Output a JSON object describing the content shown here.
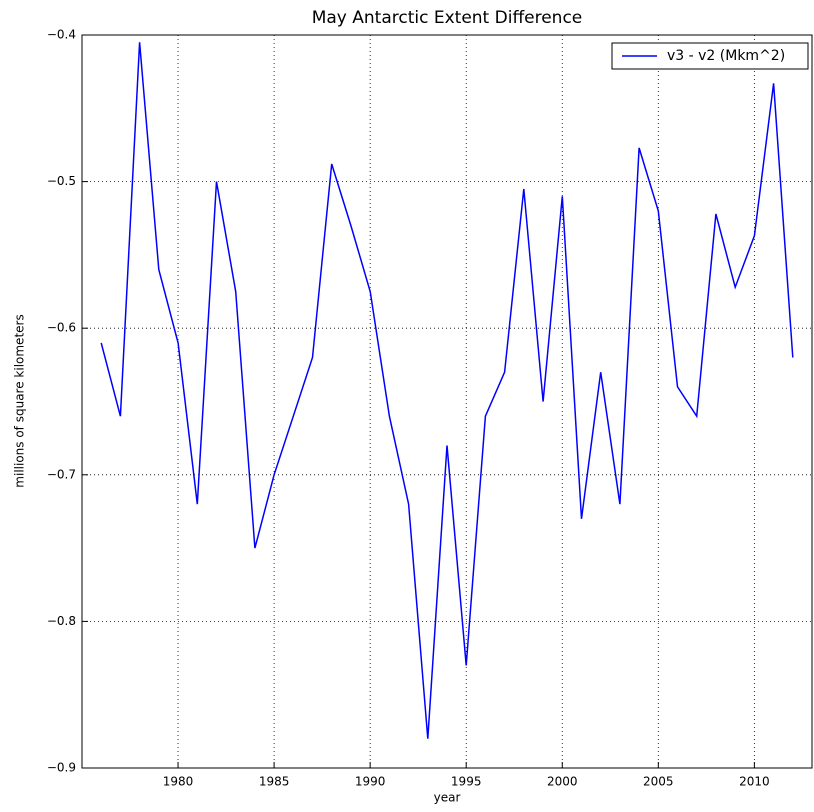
{
  "chart_data": {
    "type": "line",
    "title": "May Antarctic Extent Difference",
    "xlabel": "year",
    "ylabel": "millions of square kilometers",
    "x": [
      1976,
      1977,
      1978,
      1979,
      1980,
      1981,
      1982,
      1983,
      1984,
      1985,
      1986,
      1987,
      1988,
      1989,
      1990,
      1991,
      1992,
      1993,
      1994,
      1995,
      1996,
      1997,
      1998,
      1999,
      2000,
      2001,
      2002,
      2003,
      2004,
      2005,
      2006,
      2007,
      2008,
      2009,
      2010,
      2011,
      2012
    ],
    "series": [
      {
        "name": "v3 - v2 (Mkm^2)",
        "color": "#0000ff",
        "values": [
          -0.61,
          -0.66,
          -0.405,
          -0.56,
          -0.61,
          -0.72,
          -0.5,
          -0.575,
          -0.75,
          -0.7,
          -0.66,
          -0.62,
          -0.488,
          -0.53,
          -0.575,
          -0.66,
          -0.72,
          -0.88,
          -0.68,
          -0.83,
          -0.66,
          -0.63,
          -0.505,
          -0.65,
          -0.51,
          -0.73,
          -0.63,
          -0.72,
          -0.477,
          -0.52,
          -0.64,
          -0.66,
          -0.522,
          -0.572,
          -0.537,
          -0.433,
          -0.62
        ]
      }
    ],
    "xlim": [
      1975,
      2013
    ],
    "xticks": [
      1980,
      1985,
      1990,
      1995,
      2000,
      2005,
      2010
    ],
    "ylim": [
      -0.9,
      -0.4
    ],
    "yticks": [
      {
        "value": -0.9,
        "label": "−0.9"
      },
      {
        "value": -0.8,
        "label": "−0.8"
      },
      {
        "value": -0.7,
        "label": "−0.7"
      },
      {
        "value": -0.6,
        "label": "−0.6"
      },
      {
        "value": -0.5,
        "label": "−0.5"
      },
      {
        "value": -0.4,
        "label": "−0.4"
      }
    ],
    "grid": true,
    "legend": "upper right"
  }
}
